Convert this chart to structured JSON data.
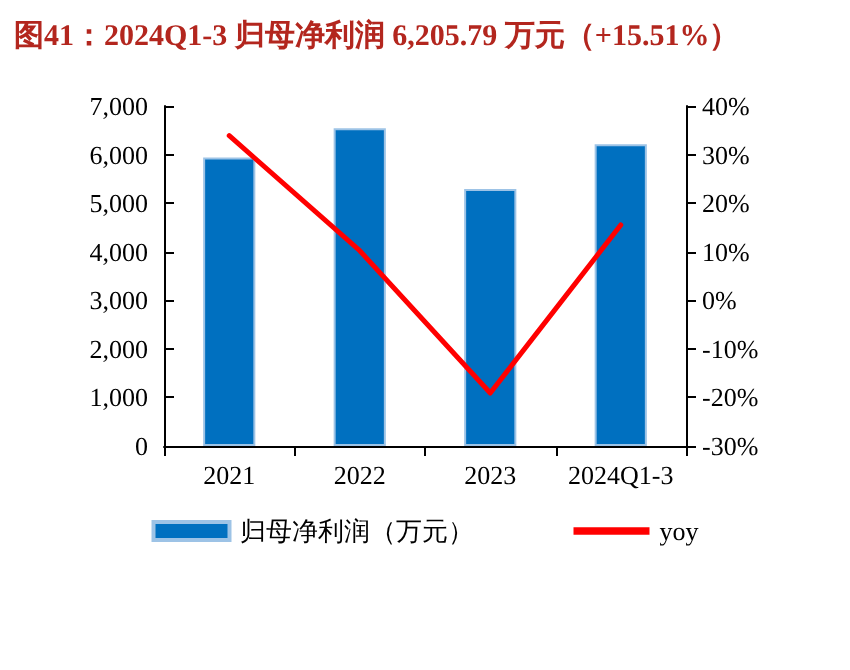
{
  "chart_data": {
    "type": "bar",
    "title": "图41：2024Q1-3 归母净利润 6,205.79 万元（+15.51%）",
    "categories": [
      "2021",
      "2022",
      "2023",
      "2024Q1-3"
    ],
    "series": [
      {
        "name": "归母净利润（万元）",
        "color": "#0070c0",
        "values": [
          5940,
          6540,
          5290,
          6210
        ]
      },
      {
        "name": "yoy",
        "type": "line",
        "axis": "y2",
        "color": "#ff0000",
        "values": [
          33.9,
          10.2,
          -19.1,
          15.5
        ]
      }
    ],
    "ylim": [
      0,
      7000
    ],
    "yticks": [
      {
        "value": 0,
        "label": "0"
      },
      {
        "value": 1000,
        "label": "1,000"
      },
      {
        "value": 2000,
        "label": "2,000"
      },
      {
        "value": 3000,
        "label": "3,000"
      },
      {
        "value": 4000,
        "label": "4,000"
      },
      {
        "value": 5000,
        "label": "5,000"
      },
      {
        "value": 6000,
        "label": "6,000"
      },
      {
        "value": 7000,
        "label": "7,000"
      }
    ],
    "y2lim": [
      -30,
      40
    ],
    "y2ticks": [
      {
        "value": -30,
        "label": "-30%"
      },
      {
        "value": -20,
        "label": "-20%"
      },
      {
        "value": -10,
        "label": "-10%"
      },
      {
        "value": 0,
        "label": "0%"
      },
      {
        "value": 10,
        "label": "10%"
      },
      {
        "value": 20,
        "label": "20%"
      },
      {
        "value": 30,
        "label": "30%"
      },
      {
        "value": 40,
        "label": "40%"
      }
    ],
    "grid": false,
    "legend": "bottom",
    "marker": "none",
    "line_style": "solid"
  }
}
